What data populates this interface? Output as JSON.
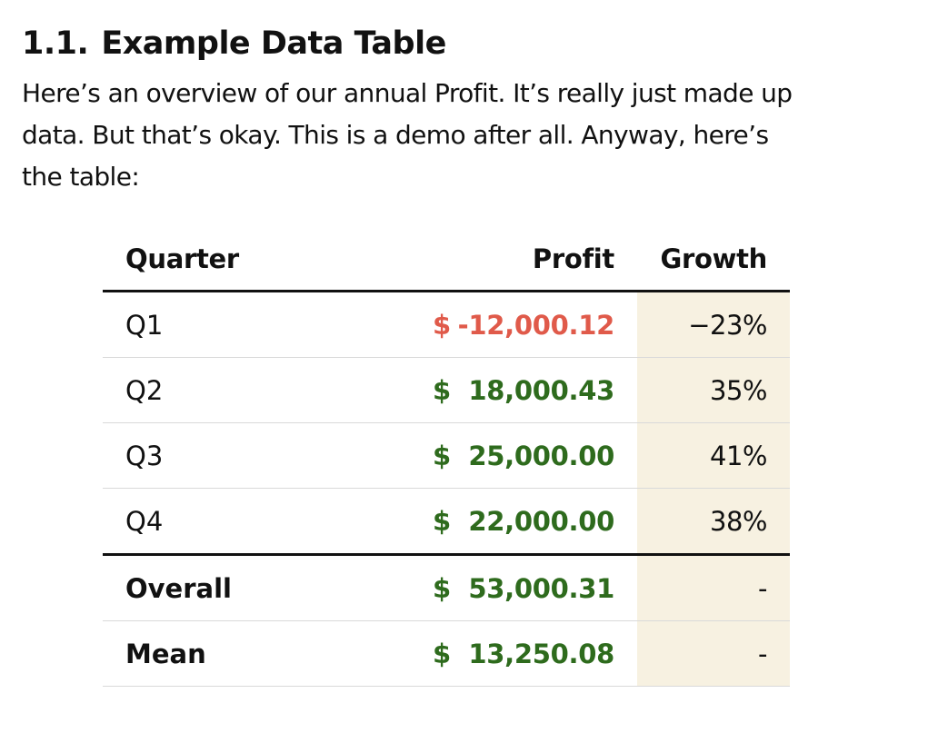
{
  "heading": {
    "number": "1.1.",
    "title": "Example Data Table"
  },
  "intro": {
    "lines": [
      "Here’s an overview of our annual Profit. It’s really just made up",
      "data. But that’s okay. This is a demo after all. Anyway, here’s",
      "the table:"
    ]
  },
  "colors": {
    "negative": "#e05a4a",
    "positive": "#2e6b1d",
    "growth_bg": "#f7f1e1",
    "rule": "#111111",
    "row_divider": "#d9d9d9"
  },
  "table": {
    "headers": {
      "quarter": "Quarter",
      "profit": "Profit",
      "growth": "Growth"
    },
    "rows": [
      {
        "quarter": "Q1",
        "currency": "$",
        "profit": "-12,000.12",
        "growth": "−23%",
        "sign": "negative"
      },
      {
        "quarter": "Q2",
        "currency": "$",
        "profit": "18,000.43",
        "growth": "35%",
        "sign": "positive"
      },
      {
        "quarter": "Q3",
        "currency": "$",
        "profit": "25,000.00",
        "growth": "41%",
        "sign": "positive"
      },
      {
        "quarter": "Q4",
        "currency": "$",
        "profit": "22,000.00",
        "growth": "38%",
        "sign": "positive"
      }
    ],
    "summary": [
      {
        "label": "Overall",
        "currency": "$",
        "profit": "53,000.31",
        "growth": "-"
      },
      {
        "label": "Mean",
        "currency": "$",
        "profit": "13,250.08",
        "growth": "-"
      }
    ]
  }
}
